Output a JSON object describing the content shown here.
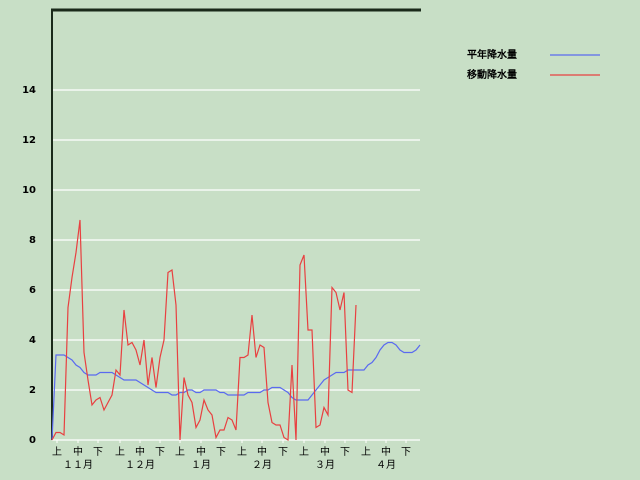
{
  "chart_data": {
    "type": "line",
    "x": [
      0,
      2,
      4,
      6,
      8,
      10,
      12,
      14,
      16,
      18,
      20,
      22,
      24,
      26,
      28,
      30,
      32,
      34,
      36,
      38,
      40,
      42,
      44,
      46,
      48,
      50,
      52,
      54,
      56,
      58,
      60,
      62,
      64,
      66,
      68,
      70,
      72,
      74,
      76,
      78,
      80,
      82,
      84,
      86,
      88,
      90,
      92,
      94,
      96,
      98,
      100,
      102,
      104,
      106,
      108,
      110,
      112,
      114,
      116,
      118,
      120,
      122,
      124,
      126,
      128,
      130,
      132,
      134,
      136,
      138,
      140,
      142,
      144,
      146,
      148,
      150,
      152,
      154,
      156,
      158,
      160,
      162,
      164,
      166,
      168,
      170,
      172,
      174,
      176,
      178,
      180,
      182,
      184
    ],
    "xlim": [
      0,
      184
    ],
    "xticks": [
      {
        "value": 2.5,
        "label": "上"
      },
      {
        "value": 13,
        "label": "中"
      },
      {
        "value": 23,
        "label": "下"
      },
      {
        "value": 34,
        "label": "上"
      },
      {
        "value": 44,
        "label": "中"
      },
      {
        "value": 54,
        "label": "下"
      },
      {
        "value": 64,
        "label": "上"
      },
      {
        "value": 74.5,
        "label": "中"
      },
      {
        "value": 84.5,
        "label": "下"
      },
      {
        "value": 95,
        "label": "上"
      },
      {
        "value": 105,
        "label": "中"
      },
      {
        "value": 115.5,
        "label": "下"
      },
      {
        "value": 126,
        "label": "上"
      },
      {
        "value": 136.5,
        "label": "中"
      },
      {
        "value": 146.5,
        "label": "下"
      },
      {
        "value": 157,
        "label": "上"
      },
      {
        "value": 167,
        "label": "中"
      },
      {
        "value": 177,
        "label": "下"
      }
    ],
    "month_labels": [
      {
        "value": 13,
        "label": "１１月"
      },
      {
        "value": 44,
        "label": "１２月"
      },
      {
        "value": 74.5,
        "label": "１月"
      },
      {
        "value": 105,
        "label": "２月"
      },
      {
        "value": 136.5,
        "label": "３月"
      },
      {
        "value": 167,
        "label": "４月"
      }
    ],
    "ylim": [
      0,
      17.2
    ],
    "yticks": [
      0,
      2,
      4,
      6,
      8,
      10,
      12,
      14
    ],
    "grid": true,
    "legend": "top-right",
    "series": [
      {
        "name": "平年降水量",
        "color": "#5a6af0",
        "values": [
          0,
          3.4,
          3.4,
          3.4,
          3.3,
          3.2,
          3.0,
          2.9,
          2.7,
          2.6,
          2.6,
          2.6,
          2.7,
          2.7,
          2.7,
          2.7,
          2.6,
          2.5,
          2.4,
          2.4,
          2.4,
          2.4,
          2.3,
          2.2,
          2.1,
          2.0,
          1.9,
          1.9,
          1.9,
          1.9,
          1.8,
          1.8,
          1.9,
          1.9,
          2.0,
          2.0,
          1.9,
          1.9,
          2.0,
          2.0,
          2.0,
          2.0,
          1.9,
          1.9,
          1.8,
          1.8,
          1.8,
          1.8,
          1.8,
          1.9,
          1.9,
          1.9,
          1.9,
          2.0,
          2.0,
          2.1,
          2.1,
          2.1,
          2.0,
          1.9,
          1.7,
          1.6,
          1.6,
          1.6,
          1.6,
          1.8,
          2.0,
          2.2,
          2.4,
          2.5,
          2.6,
          2.7,
          2.7,
          2.7,
          2.8,
          2.8,
          2.8,
          2.8,
          2.8,
          3.0,
          3.1,
          3.3,
          3.6,
          3.8,
          3.9,
          3.9,
          3.8,
          3.6,
          3.5,
          3.5,
          3.5,
          3.6,
          3.8
        ]
      },
      {
        "name": "移動降水量",
        "color": "#e84040",
        "values": [
          0,
          0.3,
          0.3,
          0.2,
          5.3,
          6.5,
          7.5,
          8.8,
          3.5,
          2.4,
          1.4,
          1.6,
          1.7,
          1.2,
          1.5,
          1.8,
          2.8,
          2.6,
          5.2,
          3.8,
          3.9,
          3.6,
          3.0,
          4.0,
          2.2,
          3.3,
          2.1,
          3.3,
          4.0,
          6.7,
          6.8,
          5.4,
          0,
          2.5,
          1.8,
          1.5,
          0.5,
          0.8,
          1.6,
          1.2,
          1.0,
          0.1,
          0.4,
          0.4,
          0.9,
          0.8,
          0.4,
          3.3,
          3.3,
          3.4,
          5.0,
          3.3,
          3.8,
          3.7,
          1.5,
          0.7,
          0.6,
          0.6,
          0.1,
          0,
          3.0,
          0,
          7.0,
          7.4,
          4.4,
          4.4,
          0.5,
          0.6,
          1.3,
          1.0,
          6.1,
          5.9,
          5.2,
          5.9,
          2.0,
          1.9,
          5.4,
          null,
          null,
          null,
          null,
          null,
          null,
          null,
          null,
          null,
          null,
          null,
          null,
          null,
          null,
          null,
          null
        ]
      }
    ]
  }
}
